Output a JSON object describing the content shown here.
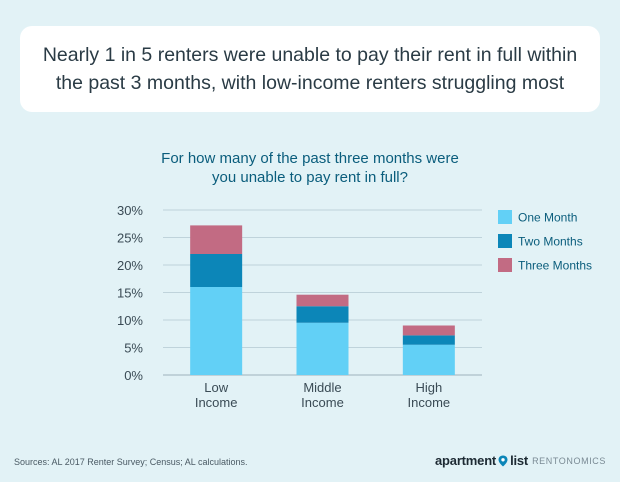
{
  "headline": {
    "line1": "Nearly 1 in 5 renters were unable to pay their rent in full within",
    "line2": "the past 3 months, with low-income renters struggling most"
  },
  "chart_data": {
    "type": "bar",
    "stacked": true,
    "title_lines": [
      "For how many of the past three months were",
      "you unable to pay rent in full?"
    ],
    "categories": [
      [
        "Low",
        "Income"
      ],
      [
        "Middle",
        "Income"
      ],
      [
        "High",
        "Income"
      ]
    ],
    "series": [
      {
        "name": "One Month",
        "color": "#62d0f6",
        "values": [
          16.0,
          9.5,
          5.5
        ]
      },
      {
        "name": "Two Months",
        "color": "#0c86b8",
        "values": [
          6.0,
          3.0,
          1.7
        ]
      },
      {
        "name": "Three Months",
        "color": "#c26b83",
        "values": [
          5.2,
          2.1,
          1.8
        ]
      }
    ],
    "yticks": [
      "0%",
      "5%",
      "10%",
      "15%",
      "20%",
      "25%",
      "30%"
    ],
    "ylim": [
      0,
      30
    ],
    "grid": true,
    "legend_position": "right"
  },
  "footer": {
    "source": "Sources: AL 2017 Renter Survey; Census; AL calculations.",
    "brand_left": "apartment",
    "brand_right": "list",
    "brand_sub": "RENTONOMICS"
  },
  "icons": {
    "brand_pin": "location-pin-icon"
  }
}
